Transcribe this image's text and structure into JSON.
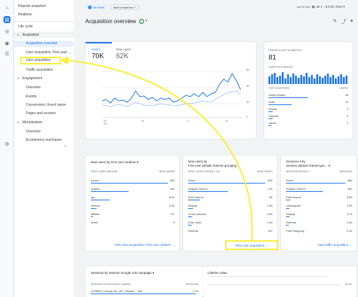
{
  "sidebar": {
    "reports_snapshot": "Reports snapshot",
    "realtime": "Realtime",
    "life_cycle": "Life cycle",
    "acquisition": "Acquisition",
    "acquisition_overview": "Acquisition overview",
    "user_acq_first": "User acquisition: First user ...",
    "user_acquisition": "User acquisition",
    "traffic_acquisition": "Traffic acquisition",
    "engagement": "Engagement",
    "overview": "Overview",
    "events": "Events",
    "conversions": "Conversions: Event name",
    "pages_screens": "Pages and screens",
    "monetization": "Monetization",
    "mon_overview": "Overview",
    "ecommerce": "Ecommerce purchases"
  },
  "header": {
    "all_users": "All Users",
    "add_comparison": "Add comparison",
    "date_label": "Last 28 days",
    "date_range": "Jul 1 - Jul 28, 2022",
    "title": "Acquisition overview"
  },
  "overview_card": {
    "users_label": "Users",
    "users_value": "70K",
    "new_users_label": "New users",
    "new_users_value": "62K",
    "x_ticks": [
      "03\nJul",
      "10",
      "17",
      "24"
    ],
    "y_ticks": [
      "6K",
      "4K",
      "2K",
      "0"
    ]
  },
  "realtime_card": {
    "title": "USERS IN LAST 30 MINUTES",
    "value": "81",
    "per_minute": "USERS PER MINUTE",
    "top_countries": "TOP COUNTRIES",
    "users_col": "USERS",
    "rows": [
      {
        "name": "United States",
        "value": "38"
      },
      {
        "name": "India",
        "value": "22"
      },
      {
        "name": "Russia",
        "value": "3"
      },
      {
        "name": "Canada",
        "value": "3"
      },
      {
        "name": "Japan",
        "value": "2"
      }
    ]
  },
  "card1": {
    "title": "New users by First user medium",
    "col1": "FIRST USER MEDIUM",
    "col2": "NEW USERS",
    "rows": [
      {
        "name": "(none)",
        "value": "33K"
      },
      {
        "name": "organic",
        "value": "16K"
      },
      {
        "name": "cpc",
        "value": "8.2K"
      },
      {
        "name": "referral",
        "value": "2.4K"
      },
      {
        "name": "affiliate",
        "value": "717"
      },
      {
        "name": "email",
        "value": "9"
      }
    ],
    "link": "View user acquisition: First user medium"
  },
  "card2": {
    "title1": "New users by",
    "title2": "First user default channel grouping",
    "col1": "FIRST USER DEFAULT CH...",
    "col2": "NEW USERS",
    "rows": [
      {
        "name": "Direct",
        "value": "33K"
      },
      {
        "name": "Organic Search",
        "value": "17K"
      },
      {
        "name": "Paid Search",
        "value": "5K"
      },
      {
        "name": "Display",
        "value": "1.9K"
      },
      {
        "name": "Cross-network",
        "value": "1.8K"
      },
      {
        "name": "Paid Video",
        "value": "1.4K"
      },
      {
        "name": "Referral",
        "value": "997"
      }
    ],
    "link": "View user acquisition"
  },
  "card3": {
    "title1": "Sessions",
    "title2": "Session default channel gro...",
    "col1": "SESSION DEFAULT ...",
    "col2": "SESSIONS",
    "rows": [
      {
        "name": "Direct",
        "value": "48K"
      },
      {
        "name": "Organic Search",
        "value": "30K"
      },
      {
        "name": "Paid Search",
        "value": "3.5K"
      },
      {
        "name": "Unassigned",
        "value": "2.9K"
      },
      {
        "name": "Display",
        "value": "2.7K"
      },
      {
        "name": "Referral",
        "value": "2.4K"
      },
      {
        "name": "Paid Shopping",
        "value": "2.1K"
      }
    ],
    "link": "View traffic acquisition"
  },
  "card4": {
    "title": "Sessions by Session Google Ads campaign",
    "col1": "SESSION GOOGLE ADS CAMPAI...",
    "col2": "SESSIONS",
    "row1_name": "1009693 | Google An...MT | Banner - Test",
    "row1_value": "2.7K"
  },
  "card5": {
    "title": "Lifetime value",
    "tick": "$1.00"
  }
}
